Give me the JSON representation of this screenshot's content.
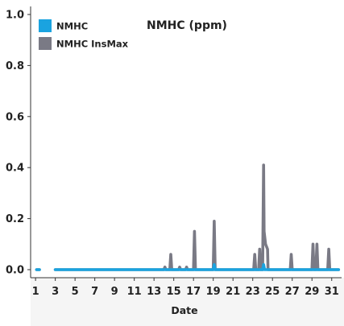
{
  "chart_data": {
    "type": "line",
    "title": "NMHC (ppm)",
    "xlabel": "Date",
    "ylabel": "",
    "ylim": [
      0,
      1.0
    ],
    "xlim": [
      0.5,
      32
    ],
    "y_ticks": [
      "0.0",
      "0.2",
      "0.4",
      "0.6",
      "0.8",
      "1.0"
    ],
    "x_ticks": [
      "1",
      "3",
      "5",
      "7",
      "9",
      "11",
      "13",
      "15",
      "17",
      "19",
      "21",
      "23",
      "25",
      "27",
      "29",
      "31"
    ],
    "legend_position": "top-left",
    "grid": false,
    "series": [
      {
        "name": "NMHC InsMax",
        "color": "#7a7a85",
        "segments": [
          [
            [
              1.1,
              0.0
            ],
            [
              1.4,
              0.0
            ]
          ],
          [
            [
              3.0,
              0.0
            ],
            [
              14.0,
              0.0
            ],
            [
              14.1,
              0.01
            ],
            [
              14.2,
              0.0
            ],
            [
              14.6,
              0.0
            ],
            [
              14.7,
              0.06
            ],
            [
              14.8,
              0.0
            ],
            [
              15.5,
              0.0
            ],
            [
              15.6,
              0.01
            ],
            [
              15.7,
              0.0
            ],
            [
              16.2,
              0.0
            ],
            [
              16.3,
              0.01
            ],
            [
              16.4,
              0.0
            ],
            [
              17.0,
              0.0
            ],
            [
              17.1,
              0.15
            ],
            [
              17.2,
              0.0
            ],
            [
              19.0,
              0.0
            ],
            [
              19.1,
              0.19
            ],
            [
              19.2,
              0.0
            ],
            [
              23.1,
              0.0
            ],
            [
              23.2,
              0.06
            ],
            [
              23.3,
              0.0
            ],
            [
              23.6,
              0.0
            ],
            [
              23.7,
              0.08
            ],
            [
              23.8,
              0.0
            ],
            [
              24.0,
              0.0
            ],
            [
              24.1,
              0.41
            ],
            [
              24.15,
              0.15
            ],
            [
              24.3,
              0.1
            ],
            [
              24.4,
              0.09
            ],
            [
              24.5,
              0.08
            ],
            [
              24.55,
              0.0
            ],
            [
              26.8,
              0.0
            ],
            [
              26.9,
              0.06
            ],
            [
              27.0,
              0.0
            ],
            [
              29.0,
              0.0
            ],
            [
              29.1,
              0.1
            ],
            [
              29.2,
              0.0
            ],
            [
              29.4,
              0.0
            ],
            [
              29.5,
              0.1
            ],
            [
              29.6,
              0.0
            ],
            [
              30.6,
              0.0
            ],
            [
              30.7,
              0.08
            ],
            [
              30.8,
              0.0
            ],
            [
              31.7,
              0.0
            ]
          ]
        ]
      },
      {
        "name": "NMHC",
        "color": "#1aa3e0",
        "segments": [
          [
            [
              1.1,
              0.0
            ],
            [
              1.4,
              0.0
            ]
          ],
          [
            [
              3.0,
              0.0
            ],
            [
              19.0,
              0.0
            ],
            [
              19.1,
              0.02
            ],
            [
              19.2,
              0.0
            ],
            [
              24.0,
              0.0
            ],
            [
              24.1,
              0.02
            ],
            [
              24.2,
              0.0
            ],
            [
              31.7,
              0.0
            ]
          ]
        ]
      }
    ]
  }
}
